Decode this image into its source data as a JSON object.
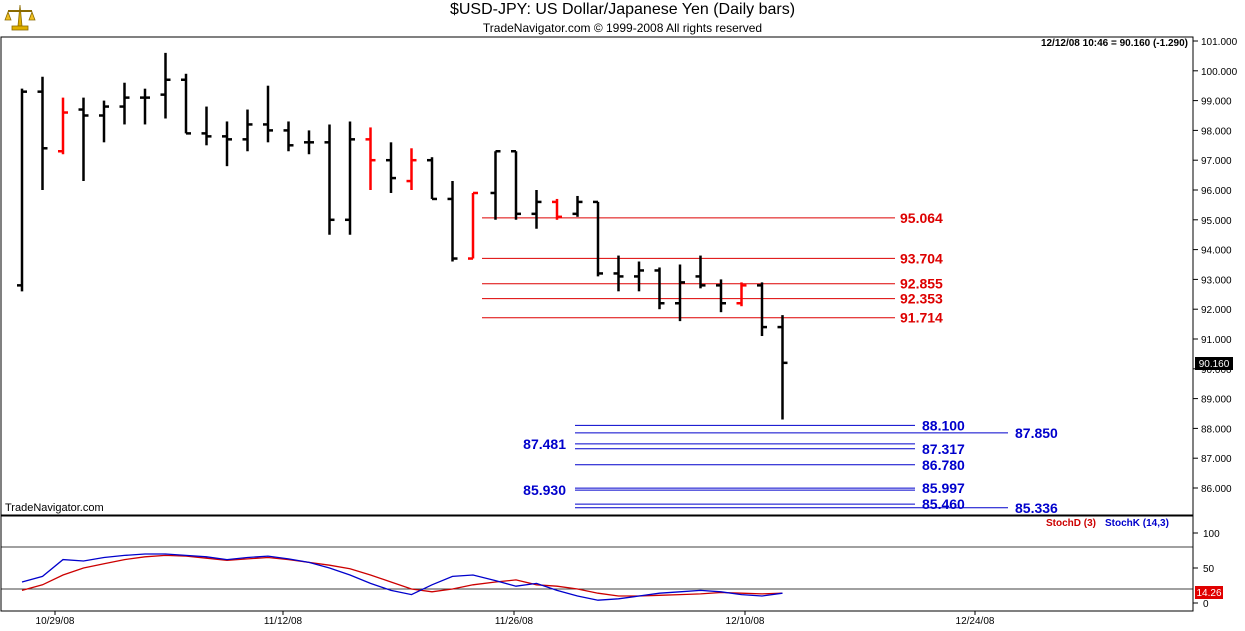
{
  "header": {
    "title": "$USD-JPY:  US Dollar/Japanese Yen  (Daily bars)",
    "subtitle": "TradeNavigator.com © 1999-2008 All rights reserved",
    "readout": "12/12/08 10:46 = 90.160 (-1.290)",
    "watermark": "TradeNavigator.com",
    "logo_icon": "balance-scale-icon"
  },
  "chart_data": [
    {
      "type": "ohlc",
      "title": "$USD-JPY:  US Dollar/Japanese Yen  (Daily bars)",
      "xlabel": "",
      "ylabel": "",
      "ylim": [
        85.15,
        101.2
      ],
      "grid": false,
      "x_ticks": [
        "10/29/08",
        "11/12/08",
        "11/26/08",
        "12/10/08",
        "12/24/08"
      ],
      "y_ticks": [
        "101.000",
        "100.000",
        "99.000",
        "98.000",
        "97.000",
        "96.000",
        "95.000",
        "94.000",
        "93.000",
        "92.000",
        "91.000",
        "90.000",
        "89.000",
        "88.000",
        "87.000",
        "86.000"
      ],
      "last_price_label": "90.160",
      "colors": {
        "up_bar": "#ff0000",
        "down_bar": "#000000",
        "resistance": "#dd0000",
        "support": "#0000cc"
      },
      "bars": [
        {
          "o": 92.8,
          "h": 99.4,
          "l": 92.6,
          "c": 99.3,
          "color": "#000000"
        },
        {
          "o": 99.3,
          "h": 99.8,
          "l": 96.0,
          "c": 97.4,
          "color": "#000000"
        },
        {
          "o": 97.3,
          "h": 99.1,
          "l": 97.2,
          "c": 98.6,
          "color": "#ff0000"
        },
        {
          "o": 98.7,
          "h": 99.1,
          "l": 96.3,
          "c": 98.5,
          "color": "#000000"
        },
        {
          "o": 98.5,
          "h": 99.0,
          "l": 97.6,
          "c": 98.8,
          "color": "#000000"
        },
        {
          "o": 98.8,
          "h": 99.6,
          "l": 98.2,
          "c": 99.1,
          "color": "#000000"
        },
        {
          "o": 99.1,
          "h": 99.4,
          "l": 98.2,
          "c": 99.1,
          "color": "#000000"
        },
        {
          "o": 99.2,
          "h": 100.6,
          "l": 98.4,
          "c": 99.7,
          "color": "#000000"
        },
        {
          "o": 99.7,
          "h": 99.9,
          "l": 97.9,
          "c": 97.9,
          "color": "#000000"
        },
        {
          "o": 97.9,
          "h": 98.8,
          "l": 97.5,
          "c": 97.8,
          "color": "#000000"
        },
        {
          "o": 97.8,
          "h": 98.3,
          "l": 96.8,
          "c": 97.7,
          "color": "#000000"
        },
        {
          "o": 97.7,
          "h": 98.7,
          "l": 97.3,
          "c": 98.2,
          "color": "#000000"
        },
        {
          "o": 98.2,
          "h": 99.5,
          "l": 97.6,
          "c": 98.0,
          "color": "#000000"
        },
        {
          "o": 98.0,
          "h": 98.3,
          "l": 97.3,
          "c": 97.5,
          "color": "#000000"
        },
        {
          "o": 97.6,
          "h": 98.0,
          "l": 97.2,
          "c": 97.6,
          "color": "#000000"
        },
        {
          "o": 97.6,
          "h": 98.2,
          "l": 94.5,
          "c": 95.0,
          "color": "#000000"
        },
        {
          "o": 95.0,
          "h": 98.3,
          "l": 94.5,
          "c": 97.7,
          "color": "#000000"
        },
        {
          "o": 97.7,
          "h": 98.1,
          "l": 96.0,
          "c": 97.0,
          "color": "#ff0000"
        },
        {
          "o": 97.0,
          "h": 97.6,
          "l": 95.9,
          "c": 96.4,
          "color": "#000000"
        },
        {
          "o": 96.3,
          "h": 97.4,
          "l": 96.0,
          "c": 97.0,
          "color": "#ff0000"
        },
        {
          "o": 97.0,
          "h": 97.1,
          "l": 95.7,
          "c": 95.7,
          "color": "#000000"
        },
        {
          "o": 95.7,
          "h": 96.3,
          "l": 93.6,
          "c": 93.7,
          "color": "#000000"
        },
        {
          "o": 93.7,
          "h": 95.9,
          "l": 93.7,
          "c": 95.9,
          "color": "#ff0000"
        },
        {
          "o": 95.9,
          "h": 97.3,
          "l": 95.0,
          "c": 97.3,
          "color": "#000000"
        },
        {
          "o": 97.3,
          "h": 97.3,
          "l": 95.0,
          "c": 95.2,
          "color": "#000000"
        },
        {
          "o": 95.2,
          "h": 96.0,
          "l": 94.7,
          "c": 95.6,
          "color": "#000000"
        },
        {
          "o": 95.6,
          "h": 95.7,
          "l": 95.0,
          "c": 95.1,
          "color": "#ff0000"
        },
        {
          "o": 95.2,
          "h": 95.8,
          "l": 95.1,
          "c": 95.6,
          "color": "#000000"
        },
        {
          "o": 95.6,
          "h": 95.6,
          "l": 93.1,
          "c": 93.2,
          "color": "#000000"
        },
        {
          "o": 93.2,
          "h": 93.8,
          "l": 92.6,
          "c": 93.1,
          "color": "#000000"
        },
        {
          "o": 93.1,
          "h": 93.6,
          "l": 92.6,
          "c": 93.3,
          "color": "#000000"
        },
        {
          "o": 93.3,
          "h": 93.4,
          "l": 92.0,
          "c": 92.2,
          "color": "#000000"
        },
        {
          "o": 92.2,
          "h": 93.5,
          "l": 91.6,
          "c": 92.9,
          "color": "#000000"
        },
        {
          "o": 93.1,
          "h": 93.8,
          "l": 92.7,
          "c": 92.8,
          "color": "#000000"
        },
        {
          "o": 92.8,
          "h": 93.0,
          "l": 91.9,
          "c": 92.2,
          "color": "#000000"
        },
        {
          "o": 92.2,
          "h": 92.9,
          "l": 92.1,
          "c": 92.8,
          "color": "#ff0000"
        },
        {
          "o": 92.8,
          "h": 92.9,
          "l": 91.1,
          "c": 91.4,
          "color": "#000000"
        },
        {
          "o": 91.4,
          "h": 91.8,
          "l": 88.3,
          "c": 90.2,
          "color": "#000000"
        }
      ],
      "resistance_levels": [
        {
          "value": 95.064,
          "label": "95.064"
        },
        {
          "value": 93.704,
          "label": "93.704"
        },
        {
          "value": 92.855,
          "label": "92.855"
        },
        {
          "value": 92.353,
          "label": "92.353"
        },
        {
          "value": 91.714,
          "label": "91.714"
        }
      ],
      "support_levels": [
        {
          "value": 88.1,
          "label": "88.100",
          "side": "right"
        },
        {
          "value": 87.85,
          "label": "87.850",
          "side": "far"
        },
        {
          "value": 87.481,
          "label": "87.481",
          "side": "left"
        },
        {
          "value": 87.317,
          "label": "87.317",
          "side": "right"
        },
        {
          "value": 86.78,
          "label": "86.780",
          "side": "right"
        },
        {
          "value": 85.997,
          "label": "85.997",
          "side": "right"
        },
        {
          "value": 85.93,
          "label": "85.930",
          "side": "left"
        },
        {
          "value": 85.46,
          "label": "85.460",
          "side": "right"
        },
        {
          "value": 85.336,
          "label": "85.336",
          "side": "far"
        }
      ]
    },
    {
      "type": "line",
      "title": "",
      "ylim": [
        0,
        100
      ],
      "y_ticks": [
        "100",
        "50",
        "0"
      ],
      "reference_lines": [
        80,
        20
      ],
      "last_value_label": "14.26",
      "series": [
        {
          "name": "StochD (3)",
          "color": "#cc0000",
          "values": [
            18,
            26,
            40,
            50,
            56,
            62,
            66,
            68,
            67,
            64,
            61,
            63,
            65,
            62,
            58,
            54,
            49,
            40,
            30,
            20,
            16,
            20,
            26,
            30,
            33,
            26,
            24,
            20,
            14,
            10,
            10,
            11,
            12,
            13,
            15,
            14,
            13,
            14
          ]
        },
        {
          "name": "StochK (14,3)",
          "color": "#0000cc",
          "values": [
            30,
            38,
            62,
            60,
            65,
            68,
            70,
            70,
            68,
            66,
            62,
            65,
            67,
            63,
            58,
            50,
            40,
            28,
            18,
            12,
            26,
            38,
            40,
            32,
            24,
            28,
            18,
            10,
            4,
            6,
            10,
            14,
            16,
            18,
            16,
            12,
            10,
            14
          ]
        }
      ]
    }
  ]
}
